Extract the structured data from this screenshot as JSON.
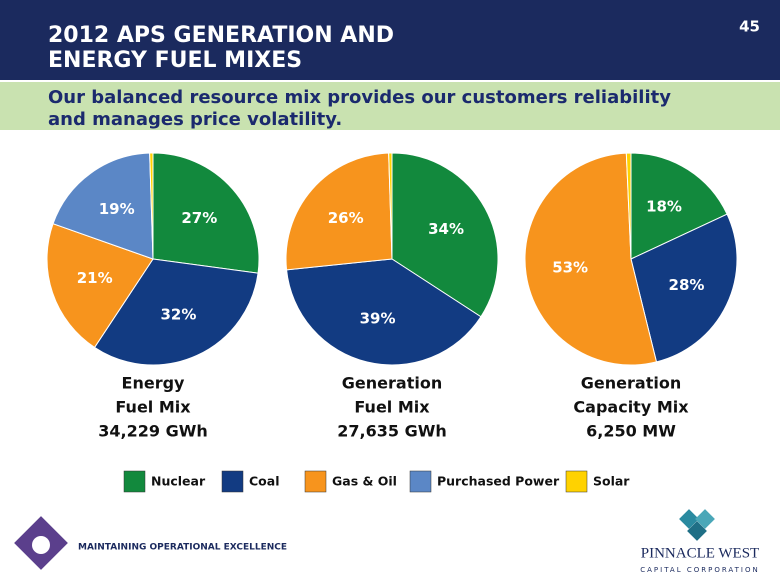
{
  "header": {
    "title_lines": [
      "2012 APS GENERATION AND",
      "ENERGY FUEL MIXES"
    ],
    "page_number": "45",
    "subtitle_lines": [
      "Our balanced resource mix provides our customers reliability",
      "and manages price volatility."
    ]
  },
  "legend": {
    "categories": [
      "Nuclear",
      "Coal",
      "Gas & Oil",
      "Purchased Power",
      "Solar"
    ],
    "colors": [
      "#12893d",
      "#123b82",
      "#f7941d",
      "#5b87c6",
      "#ffd200"
    ]
  },
  "chart_data": [
    {
      "type": "pie",
      "title": [
        "Energy",
        "Fuel Mix"
      ],
      "subtitle": "34,229 GWh",
      "values": [
        27,
        32,
        21,
        19,
        0.5
      ],
      "value_labels": [
        "27%",
        "32%",
        "21%",
        "19%",
        null
      ]
    },
    {
      "type": "pie",
      "title": [
        "Generation",
        "Fuel Mix"
      ],
      "subtitle": "27,635 GWh",
      "values": [
        34,
        39,
        26,
        null,
        0.5
      ],
      "value_labels": [
        "34%",
        "39%",
        "26%",
        null,
        null
      ]
    },
    {
      "type": "pie",
      "title": [
        "Generation",
        "Capacity Mix"
      ],
      "subtitle": "6,250 MW",
      "values": [
        18,
        28,
        53,
        null,
        0.7
      ],
      "value_labels": [
        "18%",
        "28%",
        "53%",
        null,
        null
      ]
    }
  ],
  "footer": {
    "tagline": "MAINTAINING OPERATIONAL EXCELLENCE",
    "logo_name": "PINNACLE WEST",
    "logo_sub": "CAPITAL CORPORATION"
  }
}
